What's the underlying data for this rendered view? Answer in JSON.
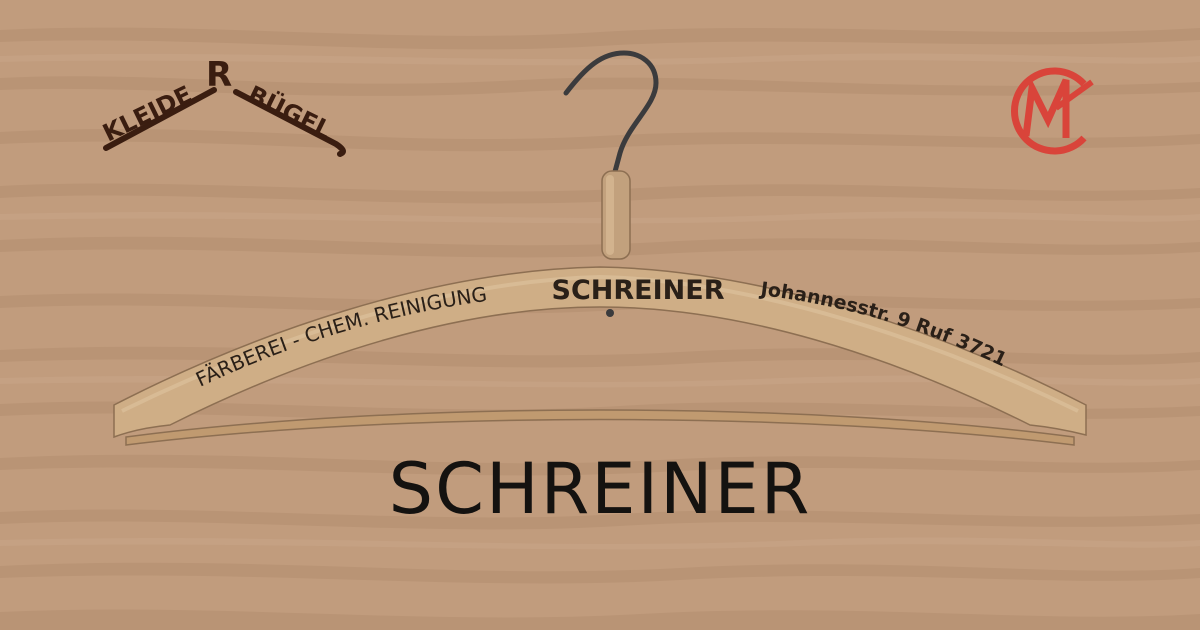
{
  "brand": {
    "logo_word_left": "KLEIDE",
    "logo_letter": "R",
    "logo_word_right": "BÜGEL",
    "monogram": "CM",
    "monogram_color": "#d9443a",
    "logo_color": "#3a1d10"
  },
  "hanger": {
    "left_text": "FÄRBEREI - CHEM. REINIGUNG",
    "center_text": "SCHREINER",
    "right_text": "Johannesstr. 9  Ruf 3721"
  },
  "caption": "SCHREINER",
  "colors": {
    "background": "#c19c7d",
    "wood_grain": "#b48f70",
    "hanger_wood": "#cfae86",
    "text_dark": "#141210"
  }
}
